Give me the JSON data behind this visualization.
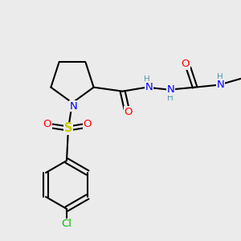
{
  "bg_color": "#ebebeb",
  "bond_color": "#000000",
  "bond_width": 1.5,
  "atom_colors": {
    "C": "#000000",
    "N": "#0000ff",
    "O": "#ff0000",
    "S": "#cccc00",
    "Cl": "#00bb00",
    "H": "#5599aa"
  },
  "font_size": 8.5,
  "font_size_small": 7.5
}
